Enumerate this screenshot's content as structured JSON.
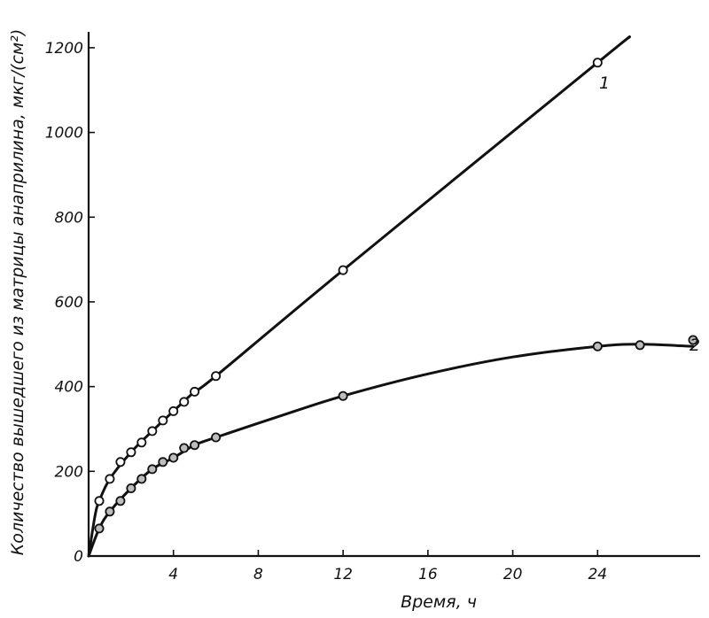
{
  "chart_data": {
    "type": "line",
    "title": "",
    "xlabel": "Время, ч",
    "ylabel": "Количество вышедшего из матрицы анаприлина, мкг/(см²)",
    "xlim": [
      0,
      28
    ],
    "ylim": [
      0,
      1250
    ],
    "x_ticks": [
      4,
      8,
      12,
      16,
      20,
      24
    ],
    "x_tick_labels": [
      "4",
      "8",
      "12",
      "16",
      "20",
      "24"
    ],
    "y_ticks": [
      0,
      200,
      400,
      600,
      800,
      1000,
      1200
    ],
    "y_tick_labels": [
      "0",
      "200",
      "400",
      "600",
      "800",
      "1000",
      "1200"
    ],
    "grid": false,
    "series": [
      {
        "name": "1",
        "marker": "open-circle",
        "points": [
          {
            "x": 0.5,
            "y": 130
          },
          {
            "x": 1.0,
            "y": 182
          },
          {
            "x": 1.5,
            "y": 222
          },
          {
            "x": 2.0,
            "y": 245
          },
          {
            "x": 2.5,
            "y": 268
          },
          {
            "x": 3.0,
            "y": 295
          },
          {
            "x": 3.5,
            "y": 320
          },
          {
            "x": 4.0,
            "y": 342
          },
          {
            "x": 4.5,
            "y": 364
          },
          {
            "x": 5.0,
            "y": 388
          },
          {
            "x": 6.0,
            "y": 425
          },
          {
            "x": 12.0,
            "y": 675
          },
          {
            "x": 24.0,
            "y": 1165
          }
        ],
        "curve": [
          {
            "x": 0,
            "y": 0
          },
          {
            "x": 0.3,
            "y": 95
          },
          {
            "x": 0.5,
            "y": 130
          },
          {
            "x": 1.0,
            "y": 182
          },
          {
            "x": 2.0,
            "y": 245
          },
          {
            "x": 3.0,
            "y": 295
          },
          {
            "x": 4.0,
            "y": 342
          },
          {
            "x": 5.0,
            "y": 388
          },
          {
            "x": 6.0,
            "y": 425
          },
          {
            "x": 12.0,
            "y": 675
          },
          {
            "x": 24.0,
            "y": 1165
          },
          {
            "x": 25.5,
            "y": 1225
          }
        ]
      },
      {
        "name": "2",
        "marker": "shaded-circle",
        "points": [
          {
            "x": 0.5,
            "y": 65
          },
          {
            "x": 1.0,
            "y": 105
          },
          {
            "x": 1.5,
            "y": 130
          },
          {
            "x": 2.0,
            "y": 160
          },
          {
            "x": 2.5,
            "y": 182
          },
          {
            "x": 3.0,
            "y": 205
          },
          {
            "x": 3.5,
            "y": 222
          },
          {
            "x": 4.0,
            "y": 232
          },
          {
            "x": 4.5,
            "y": 255
          },
          {
            "x": 5.0,
            "y": 262
          },
          {
            "x": 6.0,
            "y": 280
          },
          {
            "x": 12.0,
            "y": 378
          },
          {
            "x": 24.0,
            "y": 495
          },
          {
            "x": 26.0,
            "y": 498
          },
          {
            "x": 28.5,
            "y": 510
          }
        ],
        "curve": [
          {
            "x": 0,
            "y": 0
          },
          {
            "x": 0.5,
            "y": 65
          },
          {
            "x": 1.0,
            "y": 105
          },
          {
            "x": 2.0,
            "y": 160
          },
          {
            "x": 3.0,
            "y": 205
          },
          {
            "x": 4.0,
            "y": 232
          },
          {
            "x": 5.0,
            "y": 262
          },
          {
            "x": 6.0,
            "y": 280
          },
          {
            "x": 9.0,
            "y": 330
          },
          {
            "x": 12.0,
            "y": 378
          },
          {
            "x": 16.0,
            "y": 430
          },
          {
            "x": 20.0,
            "y": 470
          },
          {
            "x": 24.0,
            "y": 495
          },
          {
            "x": 26.0,
            "y": 500
          },
          {
            "x": 28.5,
            "y": 495
          }
        ]
      }
    ],
    "curve_labels": [
      "1",
      "2"
    ]
  }
}
